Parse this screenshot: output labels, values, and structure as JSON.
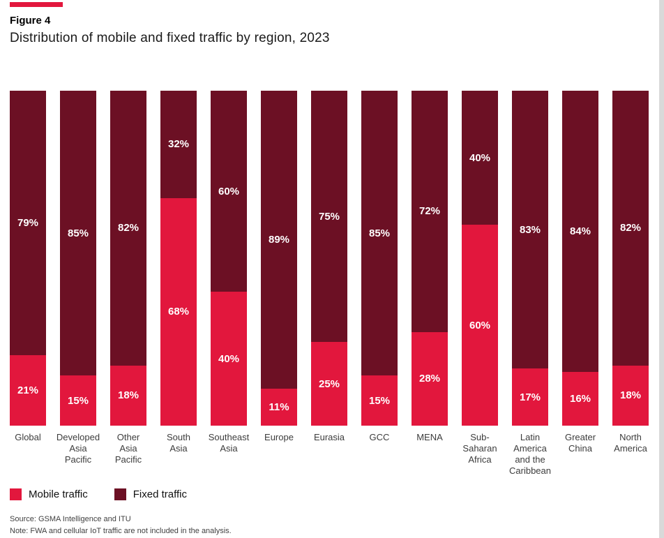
{
  "header": {
    "figure_label": "Figure 4",
    "title": "Distribution of mobile and fixed traffic by region, 2023"
  },
  "colors": {
    "accent": "#e2173d",
    "mobile": "#e2173d",
    "fixed": "#6c1024",
    "page_edge": "#d9d9d9"
  },
  "chart_data": {
    "type": "bar",
    "subtype": "100%-stacked-column",
    "title": "Distribution of mobile and fixed traffic by region, 2023",
    "categories": [
      "Global",
      "Developed Asia Pacific",
      "Other Asia Pacific",
      "South Asia",
      "Southeast Asia",
      "Europe",
      "Eurasia",
      "GCC",
      "MENA",
      "Sub-Saharan Africa",
      "Latin America and the Caribbean",
      "Greater China",
      "North America"
    ],
    "category_label_lines": [
      [
        "Global"
      ],
      [
        "Developed",
        "Asia",
        "Pacific"
      ],
      [
        "Other",
        "Asia",
        "Pacific"
      ],
      [
        "South",
        "Asia"
      ],
      [
        "Southeast",
        "Asia"
      ],
      [
        "Europe"
      ],
      [
        "Eurasia"
      ],
      [
        "GCC"
      ],
      [
        "MENA"
      ],
      [
        "Sub-",
        "Saharan",
        "Africa"
      ],
      [
        "Latin",
        "America",
        "and the",
        "Caribbean"
      ],
      [
        "Greater",
        "China"
      ],
      [
        "North",
        "America"
      ]
    ],
    "series": [
      {
        "name": "Mobile traffic",
        "color": "#e2173d",
        "values": [
          21,
          15,
          18,
          68,
          40,
          11,
          25,
          15,
          28,
          60,
          17,
          16,
          18
        ]
      },
      {
        "name": "Fixed traffic",
        "color": "#6c1024",
        "values": [
          79,
          85,
          82,
          32,
          60,
          89,
          75,
          85,
          72,
          40,
          83,
          84,
          82
        ]
      }
    ],
    "value_suffix": "%",
    "ylim": [
      0,
      100
    ],
    "grid": false,
    "legend_position": "bottom"
  },
  "legend": {
    "items": [
      {
        "label": "Mobile traffic",
        "color": "#e2173d"
      },
      {
        "label": "Fixed traffic",
        "color": "#6c1024"
      }
    ]
  },
  "footer": {
    "source": "Source: GSMA Intelligence and ITU",
    "note": "Note: FWA and cellular IoT traffic are not included in the analysis."
  }
}
